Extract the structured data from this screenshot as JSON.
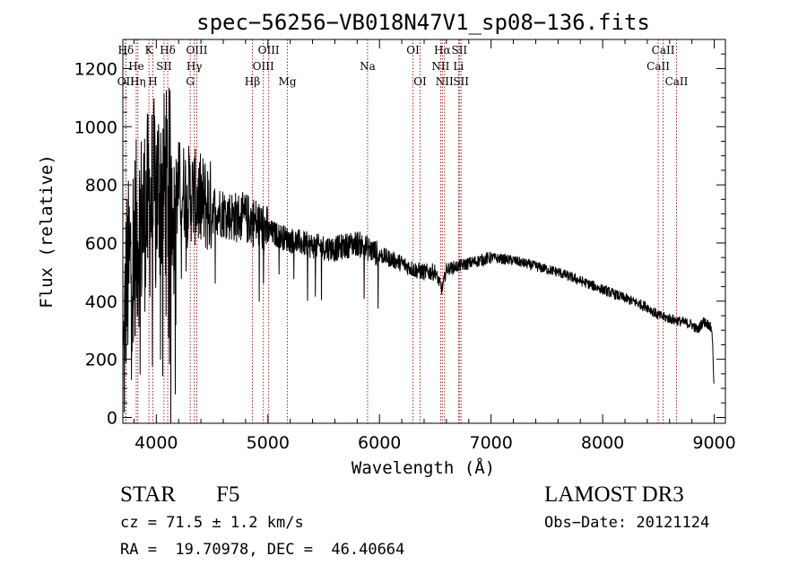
{
  "chart_data": {
    "type": "line",
    "title": "spec−56256−VB018N47V1_sp08−136.fits",
    "xlabel": "Wavelength (Å)",
    "ylabel": "Flux (relative)",
    "xlim": [
      3700,
      9100
    ],
    "ylim": [
      -20,
      1300
    ],
    "x_ticks": [
      4000,
      5000,
      6000,
      7000,
      8000,
      9000
    ],
    "x_tick_labels": [
      "4000",
      "5000",
      "6000",
      "7000",
      "8000",
      "9000"
    ],
    "y_ticks": [
      0,
      200,
      400,
      600,
      800,
      1000,
      1200
    ],
    "y_tick_labels": [
      "0",
      "200",
      "400",
      "600",
      "800",
      "1000",
      "1200"
    ],
    "line_color": "#000000",
    "marker_color": "#aa2222",
    "continuum": {
      "x": [
        3705,
        3730,
        3800,
        3900,
        4000,
        4100,
        4200,
        4300,
        4400,
        4500,
        4700,
        4850,
        5000,
        5200,
        5400,
        5600,
        5800,
        5900,
        6000,
        6200,
        6300,
        6400,
        6500,
        6560,
        6600,
        6800,
        7000,
        7200,
        7400,
        7600,
        7800,
        8000,
        8200,
        8400,
        8500,
        8600,
        8700,
        8800,
        8850,
        8900,
        8950,
        8980,
        9000
      ],
      "y": [
        150,
        450,
        600,
        700,
        780,
        800,
        790,
        770,
        740,
        720,
        690,
        680,
        640,
        610,
        590,
        580,
        600,
        580,
        560,
        530,
        510,
        500,
        500,
        440,
        510,
        530,
        550,
        540,
        520,
        500,
        470,
        440,
        410,
        380,
        350,
        340,
        330,
        320,
        300,
        330,
        320,
        300,
        100
      ]
    },
    "reference_lines": [
      {
        "label": "Hδ",
        "x": 3727,
        "row": 1
      },
      {
        "label": "OII",
        "x": 3727,
        "row": 3
      },
      {
        "label": "K",
        "x": 3934,
        "row": 1
      },
      {
        "label": "H",
        "x": 3969,
        "row": 3
      },
      {
        "label": "He",
        "x": 3820,
        "row": 2
      },
      {
        "label": "SII",
        "x": 4069,
        "row": 2
      },
      {
        "label": "Hδ",
        "x": 4102,
        "row": 1
      },
      {
        "label": "Hη",
        "x": 3835,
        "row": 3
      },
      {
        "label": "OIII",
        "x": 4363,
        "row": 1
      },
      {
        "label": "Hγ",
        "x": 4340,
        "row": 2
      },
      {
        "label": "G",
        "x": 4304,
        "row": 3
      },
      {
        "label": "Hβ",
        "x": 4861,
        "row": 3
      },
      {
        "label": "OIII",
        "x": 5007,
        "row": 1
      },
      {
        "label": "OIII",
        "x": 4959,
        "row": 2
      },
      {
        "label": "Mg",
        "x": 5175,
        "row": 3
      },
      {
        "label": "Na",
        "x": 5893,
        "row": 2
      },
      {
        "label": "OI",
        "x": 6300,
        "row": 1
      },
      {
        "label": "OI",
        "x": 6364,
        "row": 3
      },
      {
        "label": "Hα",
        "x": 6563,
        "row": 1
      },
      {
        "label": "NII",
        "x": 6548,
        "row": 2
      },
      {
        "label": "NII",
        "x": 6583,
        "row": 3
      },
      {
        "label": "SII",
        "x": 6716,
        "row": 1
      },
      {
        "label": "Li",
        "x": 6708,
        "row": 2
      },
      {
        "label": "SII",
        "x": 6731,
        "row": 3
      },
      {
        "label": "CaII",
        "x": 8498,
        "row": 2
      },
      {
        "label": "CaII",
        "x": 8542,
        "row": 1
      },
      {
        "label": "CaII",
        "x": 8662,
        "row": 3
      }
    ]
  },
  "info": {
    "class": "STAR",
    "subclass": "F5",
    "survey": "LAMOST DR3",
    "cz": "cz = 71.5 ± 1.2 km/s",
    "obs_date": "Obs−Date: 20121124",
    "coords": "RA =  19.70978, DEC =  46.40664"
  }
}
